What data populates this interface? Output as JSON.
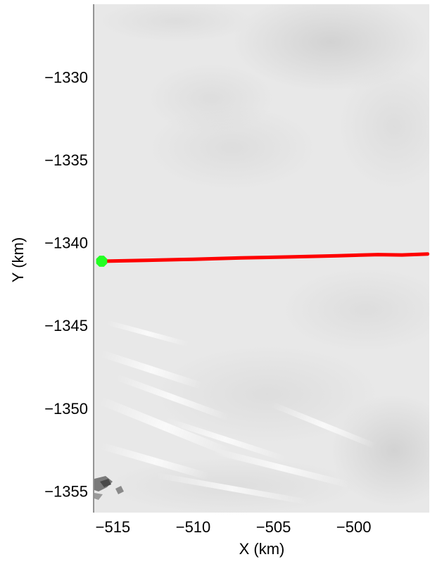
{
  "chart_data": {
    "type": "line",
    "title": "",
    "xlabel": "X (km)",
    "ylabel": "Y (km)",
    "xlim": [
      -516.2,
      -495.3
    ],
    "ylim": [
      -1356.3,
      -1325.6
    ],
    "x_ticks": [
      -515,
      -510,
      -505,
      -500
    ],
    "x_tick_labels": [
      "−515",
      "−510",
      "−505",
      "−500"
    ],
    "y_ticks": [
      -1330,
      -1335,
      -1340,
      -1345,
      -1350,
      -1355
    ],
    "y_tick_labels": [
      "−1330",
      "−1335",
      "−1340",
      "−1345",
      "−1350",
      "−1355"
    ],
    "grid": false,
    "background": "grayscale satellite imagery",
    "series": [
      {
        "color": "#ff0000",
        "x": [
          -515.7,
          -513.0,
          -510.0,
          -507.0,
          -504.0,
          -501.0,
          -498.5,
          -497.0,
          -495.4
        ],
        "y": [
          -1341.12,
          -1341.07,
          -1341.0,
          -1340.92,
          -1340.86,
          -1340.79,
          -1340.72,
          -1340.74,
          -1340.68
        ]
      }
    ],
    "marker": {
      "shape": "octagon",
      "color": "#22ff22",
      "x": -515.7,
      "y": -1341.12
    }
  }
}
